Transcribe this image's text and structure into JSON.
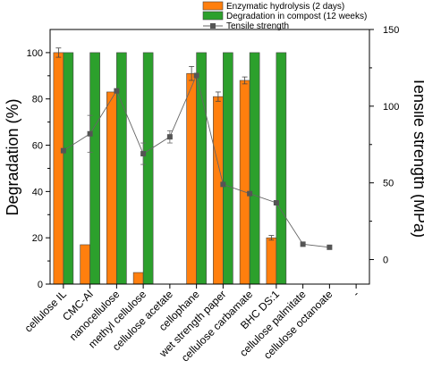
{
  "chart_data": {
    "type": "bar",
    "categories": [
      "cellulose IL",
      "CMC-Al",
      "nanocellulose",
      "methyl cellulose",
      "cellulose acetate",
      "cellophane",
      "wet strength paper",
      "cellulose carbamate",
      "BHC DS:1",
      "cellulose palmitate",
      "cellulose octanoate",
      "-"
    ],
    "series": [
      {
        "name": "Enzymatic hydrolysis (2 days)",
        "kind": "bar",
        "color": "#ff7f0e",
        "values": [
          100,
          17,
          83,
          5,
          null,
          91,
          81,
          88,
          20,
          null,
          null,
          null
        ],
        "errors": [
          2,
          0,
          0,
          0,
          null,
          3,
          2,
          1.5,
          1,
          null,
          null,
          null
        ]
      },
      {
        "name": "Degradation in compost (12 weeks)",
        "kind": "bar",
        "color": "#2ca02c",
        "values": [
          100,
          100,
          100,
          100,
          null,
          100,
          100,
          100,
          100,
          null,
          null,
          null
        ]
      },
      {
        "name": "Tensile strength",
        "kind": "line",
        "axis": "right",
        "color": "#555555",
        "values": [
          71,
          82,
          110,
          69,
          80,
          120,
          49,
          43,
          37,
          10,
          8,
          null
        ],
        "errors": [
          0,
          12,
          0,
          7,
          4,
          0,
          0,
          0,
          0,
          0,
          0,
          null
        ]
      }
    ],
    "ylabel": "Degradation (%)",
    "ylim": [
      0,
      110
    ],
    "yticks": [
      "0",
      "20",
      "40",
      "60",
      "80",
      "100"
    ],
    "y2label": "Tensile strength (MPa)",
    "y2lim": [
      -16,
      150
    ],
    "y2ticks": [
      "0",
      "50",
      "100",
      "150"
    ],
    "legend": "top-right"
  }
}
